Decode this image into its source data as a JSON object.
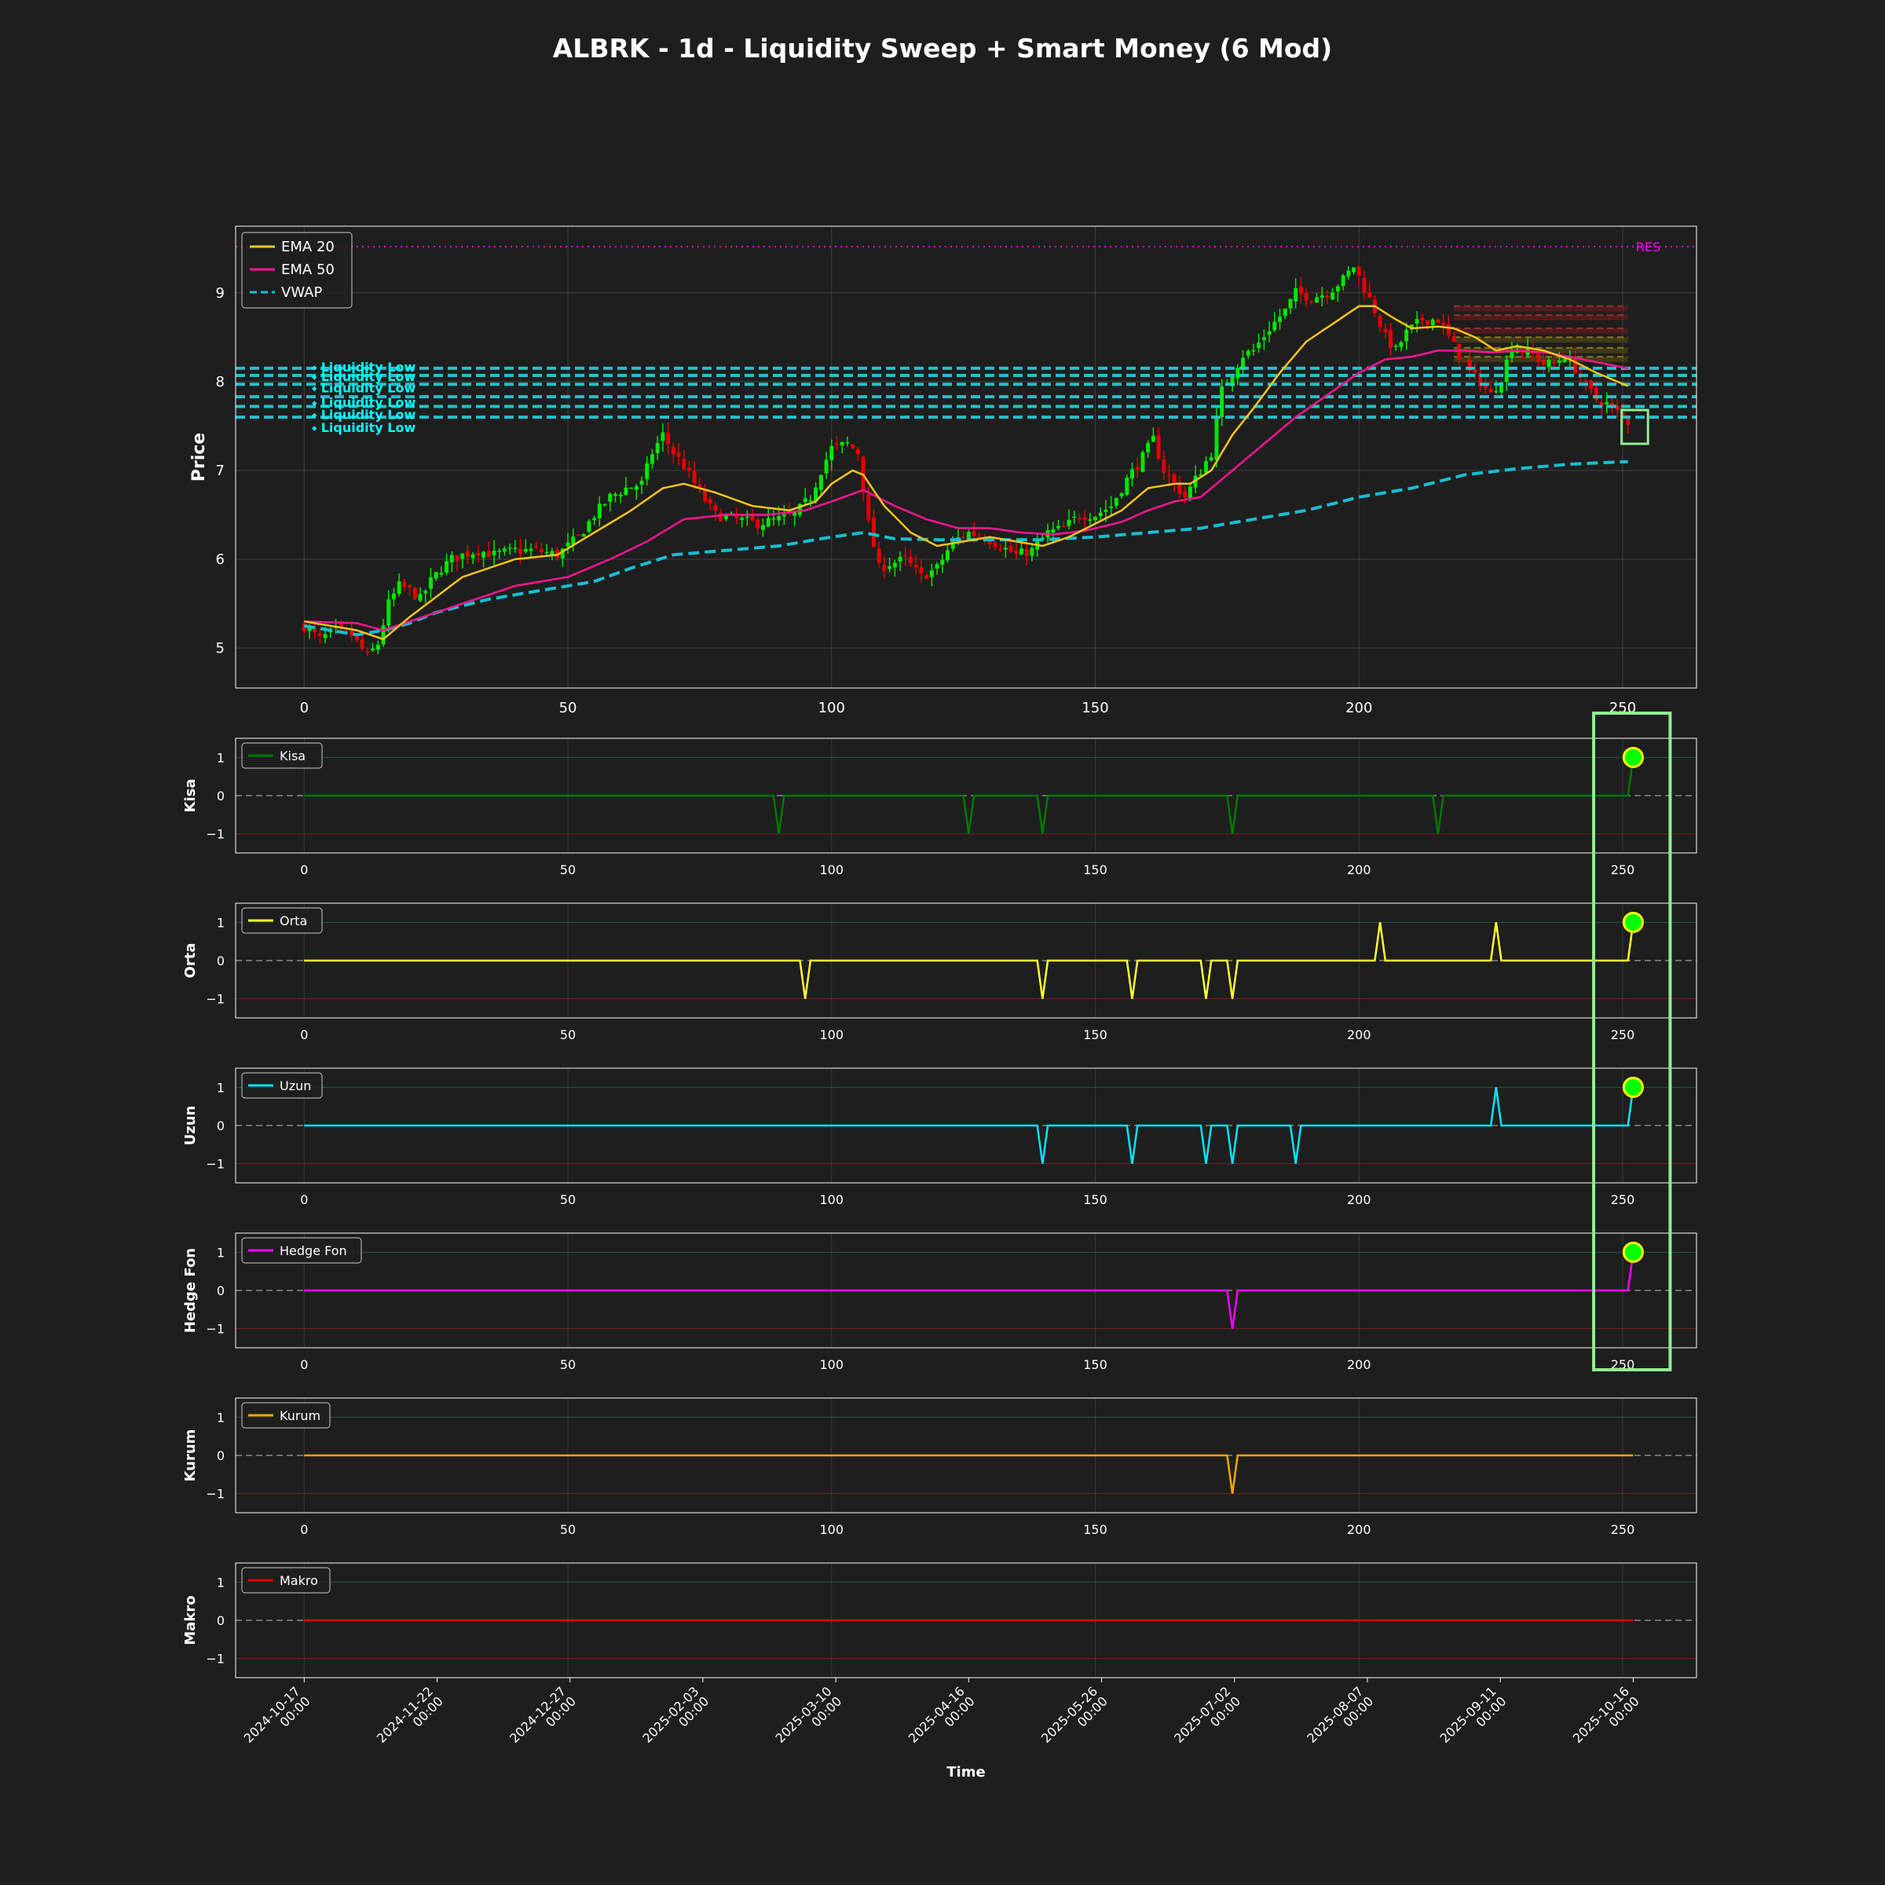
{
  "title": "ALBRK - 1d - Liquidity Sweep + Smart Money (6 Mod)",
  "colors": {
    "background": "#1e1e1e",
    "up_candle": "#00e600",
    "down_candle": "#e60000",
    "ema20": "#f5c518",
    "ema50": "#ff1493",
    "vwap": "#17becf",
    "liquidity": "#22d3dd",
    "resistance": "#ff00ff",
    "highlight": "#90ee90",
    "marker_fill": "#00ff00",
    "marker_edge": "#ffff00"
  },
  "chart_data": [
    {
      "type": "candlestick",
      "id": "price",
      "ylabel": "Price",
      "xlim": [
        -13,
        264
      ],
      "ylim": [
        4.55,
        9.75
      ],
      "xticks": [
        0,
        50,
        100,
        150,
        200,
        250
      ],
      "yticks": [
        5,
        6,
        7,
        8,
        9
      ],
      "grid": true,
      "legend_position": "top-left",
      "legend": [
        "EMA 20",
        "EMA 50",
        "VWAP"
      ],
      "series_names": {
        "ema20": "EMA 20",
        "ema50": "EMA 50",
        "vwap": "VWAP"
      },
      "close_anchors": [
        [
          0,
          5.25
        ],
        [
          3,
          5.1
        ],
        [
          6,
          5.2
        ],
        [
          9,
          5.15
        ],
        [
          12,
          4.9
        ],
        [
          14,
          5.05
        ],
        [
          16,
          5.5
        ],
        [
          18,
          5.7
        ],
        [
          20,
          5.65
        ],
        [
          22,
          5.55
        ],
        [
          24,
          5.75
        ],
        [
          26,
          5.9
        ],
        [
          28,
          6.0
        ],
        [
          30,
          6.05
        ],
        [
          33,
          6.1
        ],
        [
          36,
          6.05
        ],
        [
          40,
          6.1
        ],
        [
          44,
          6.1
        ],
        [
          48,
          6.05
        ],
        [
          52,
          6.25
        ],
        [
          55,
          6.5
        ],
        [
          58,
          6.7
        ],
        [
          61,
          6.8
        ],
        [
          64,
          6.85
        ],
        [
          66,
          7.2
        ],
        [
          68,
          7.4
        ],
        [
          70,
          7.2
        ],
        [
          72,
          7.05
        ],
        [
          75,
          6.75
        ],
        [
          78,
          6.5
        ],
        [
          82,
          6.45
        ],
        [
          86,
          6.4
        ],
        [
          90,
          6.45
        ],
        [
          93,
          6.5
        ],
        [
          96,
          6.7
        ],
        [
          98,
          7.0
        ],
        [
          100,
          7.25
        ],
        [
          103,
          7.3
        ],
        [
          105,
          7.2
        ],
        [
          107,
          6.4
        ],
        [
          109,
          5.9
        ],
        [
          111,
          5.95
        ],
        [
          114,
          6.0
        ],
        [
          117,
          5.8
        ],
        [
          120,
          5.9
        ],
        [
          123,
          6.2
        ],
        [
          126,
          6.3
        ],
        [
          129,
          6.25
        ],
        [
          132,
          6.15
        ],
        [
          135,
          6.05
        ],
        [
          138,
          6.1
        ],
        [
          141,
          6.3
        ],
        [
          144,
          6.35
        ],
        [
          147,
          6.5
        ],
        [
          150,
          6.5
        ],
        [
          153,
          6.6
        ],
        [
          156,
          6.9
        ],
        [
          159,
          7.15
        ],
        [
          161,
          7.35
        ],
        [
          163,
          7.0
        ],
        [
          165,
          6.85
        ],
        [
          167,
          6.7
        ],
        [
          169,
          6.9
        ],
        [
          172,
          7.2
        ],
        [
          174,
          7.9
        ],
        [
          176,
          8.1
        ],
        [
          178,
          8.3
        ],
        [
          180,
          8.35
        ],
        [
          183,
          8.6
        ],
        [
          186,
          8.8
        ],
        [
          188,
          9.0
        ],
        [
          191,
          8.95
        ],
        [
          194,
          9.0
        ],
        [
          197,
          9.15
        ],
        [
          199,
          9.3
        ],
        [
          201,
          9.05
        ],
        [
          203,
          8.8
        ],
        [
          205,
          8.5
        ],
        [
          207,
          8.35
        ],
        [
          209,
          8.55
        ],
        [
          212,
          8.7
        ],
        [
          215,
          8.7
        ],
        [
          217,
          8.5
        ],
        [
          219,
          8.3
        ],
        [
          221,
          8.1
        ],
        [
          223,
          8.0
        ],
        [
          225,
          7.85
        ],
        [
          227,
          8.05
        ],
        [
          229,
          8.4
        ],
        [
          231,
          8.35
        ],
        [
          233,
          8.3
        ],
        [
          235,
          8.2
        ],
        [
          237,
          8.2
        ],
        [
          239,
          8.3
        ],
        [
          241,
          8.15
        ],
        [
          243,
          7.95
        ],
        [
          245,
          7.8
        ],
        [
          247,
          7.75
        ],
        [
          249,
          7.65
        ],
        [
          251,
          7.55
        ]
      ],
      "ema20_anchors": [
        [
          0,
          5.3
        ],
        [
          10,
          5.2
        ],
        [
          15,
          5.1
        ],
        [
          20,
          5.35
        ],
        [
          30,
          5.8
        ],
        [
          40,
          6.0
        ],
        [
          48,
          6.05
        ],
        [
          55,
          6.3
        ],
        [
          62,
          6.55
        ],
        [
          68,
          6.8
        ],
        [
          72,
          6.85
        ],
        [
          78,
          6.75
        ],
        [
          85,
          6.6
        ],
        [
          92,
          6.55
        ],
        [
          97,
          6.65
        ],
        [
          100,
          6.85
        ],
        [
          104,
          7.0
        ],
        [
          106,
          6.95
        ],
        [
          110,
          6.6
        ],
        [
          115,
          6.3
        ],
        [
          120,
          6.15
        ],
        [
          125,
          6.2
        ],
        [
          130,
          6.25
        ],
        [
          135,
          6.2
        ],
        [
          140,
          6.15
        ],
        [
          145,
          6.25
        ],
        [
          150,
          6.4
        ],
        [
          155,
          6.55
        ],
        [
          160,
          6.8
        ],
        [
          165,
          6.85
        ],
        [
          168,
          6.85
        ],
        [
          172,
          7.0
        ],
        [
          176,
          7.4
        ],
        [
          180,
          7.7
        ],
        [
          185,
          8.1
        ],
        [
          190,
          8.45
        ],
        [
          195,
          8.65
        ],
        [
          200,
          8.85
        ],
        [
          203,
          8.85
        ],
        [
          207,
          8.7
        ],
        [
          210,
          8.6
        ],
        [
          215,
          8.62
        ],
        [
          218,
          8.6
        ],
        [
          222,
          8.5
        ],
        [
          226,
          8.35
        ],
        [
          230,
          8.4
        ],
        [
          235,
          8.35
        ],
        [
          240,
          8.25
        ],
        [
          245,
          8.1
        ],
        [
          251,
          7.95
        ]
      ],
      "ema50_anchors": [
        [
          0,
          5.3
        ],
        [
          10,
          5.28
        ],
        [
          15,
          5.2
        ],
        [
          20,
          5.3
        ],
        [
          30,
          5.5
        ],
        [
          40,
          5.7
        ],
        [
          50,
          5.8
        ],
        [
          58,
          6.0
        ],
        [
          65,
          6.2
        ],
        [
          72,
          6.45
        ],
        [
          80,
          6.5
        ],
        [
          88,
          6.5
        ],
        [
          95,
          6.55
        ],
        [
          100,
          6.65
        ],
        [
          106,
          6.78
        ],
        [
          112,
          6.6
        ],
        [
          118,
          6.45
        ],
        [
          124,
          6.35
        ],
        [
          130,
          6.35
        ],
        [
          136,
          6.3
        ],
        [
          142,
          6.28
        ],
        [
          148,
          6.32
        ],
        [
          155,
          6.42
        ],
        [
          160,
          6.55
        ],
        [
          165,
          6.65
        ],
        [
          170,
          6.7
        ],
        [
          176,
          7.0
        ],
        [
          182,
          7.3
        ],
        [
          188,
          7.6
        ],
        [
          194,
          7.85
        ],
        [
          200,
          8.1
        ],
        [
          205,
          8.25
        ],
        [
          210,
          8.28
        ],
        [
          215,
          8.35
        ],
        [
          220,
          8.35
        ],
        [
          225,
          8.33
        ],
        [
          230,
          8.35
        ],
        [
          235,
          8.33
        ],
        [
          240,
          8.28
        ],
        [
          245,
          8.22
        ],
        [
          251,
          8.15
        ]
      ],
      "vwap_anchors": [
        [
          0,
          5.25
        ],
        [
          10,
          5.15
        ],
        [
          15,
          5.2
        ],
        [
          20,
          5.28
        ],
        [
          25,
          5.4
        ],
        [
          35,
          5.55
        ],
        [
          45,
          5.65
        ],
        [
          55,
          5.75
        ],
        [
          62,
          5.9
        ],
        [
          70,
          6.05
        ],
        [
          80,
          6.1
        ],
        [
          90,
          6.15
        ],
        [
          100,
          6.25
        ],
        [
          106,
          6.3
        ],
        [
          112,
          6.23
        ],
        [
          120,
          6.22
        ],
        [
          130,
          6.22
        ],
        [
          140,
          6.22
        ],
        [
          150,
          6.25
        ],
        [
          160,
          6.3
        ],
        [
          170,
          6.35
        ],
        [
          180,
          6.45
        ],
        [
          190,
          6.55
        ],
        [
          200,
          6.7
        ],
        [
          210,
          6.8
        ],
        [
          220,
          6.95
        ],
        [
          230,
          7.02
        ],
        [
          240,
          7.07
        ],
        [
          251,
          7.1
        ]
      ],
      "liquidity_levels": [
        8.15,
        8.07,
        7.97,
        7.83,
        7.72,
        7.6
      ],
      "liquidity_label": "⬩ Liquidity Low",
      "resistance_level": 9.52,
      "resistance_label": "RES",
      "zone_levels": [
        8.85,
        8.75,
        8.6,
        8.5,
        8.38,
        8.28
      ],
      "zone_x": [
        218,
        251
      ]
    },
    {
      "type": "line",
      "id": "kisa",
      "ylabel": "Kisa",
      "series_name": "Kisa",
      "color": "#007a00",
      "ylim": [
        -1.5,
        1.5
      ],
      "yticks": [
        1,
        0,
        -1
      ],
      "spikes": [
        [
          90,
          -1
        ],
        [
          126,
          -1
        ],
        [
          140,
          -1
        ],
        [
          176,
          -1
        ],
        [
          215,
          -1
        ],
        [
          251,
          1
        ]
      ],
      "marker": [
        252,
        1
      ],
      "highlight": true
    },
    {
      "type": "line",
      "id": "orta",
      "ylabel": "Orta",
      "series_name": "Orta",
      "color": "#ffff33",
      "ylim": [
        -1.5,
        1.5
      ],
      "yticks": [
        1,
        0,
        -1
      ],
      "spikes": [
        [
          95,
          -1
        ],
        [
          140,
          -1
        ],
        [
          157,
          -1
        ],
        [
          171,
          -1
        ],
        [
          176,
          -1
        ],
        [
          204,
          1
        ],
        [
          226,
          1
        ],
        [
          251,
          1
        ]
      ],
      "marker": [
        252,
        1
      ],
      "highlight": true
    },
    {
      "type": "line",
      "id": "uzun",
      "ylabel": "Uzun",
      "series_name": "Uzun",
      "color": "#00e5ff",
      "ylim": [
        -1.5,
        1.5
      ],
      "yticks": [
        1,
        0,
        -1
      ],
      "spikes": [
        [
          140,
          -1
        ],
        [
          157,
          -1
        ],
        [
          171,
          -1
        ],
        [
          176,
          -1
        ],
        [
          188,
          -1
        ],
        [
          226,
          1
        ],
        [
          251,
          1
        ]
      ],
      "marker": [
        252,
        1
      ],
      "highlight": true
    },
    {
      "type": "line",
      "id": "hedge",
      "ylabel": "Hedge Fon",
      "series_name": "Hedge Fon",
      "color": "#ff00ff",
      "ylim": [
        -1.5,
        1.5
      ],
      "yticks": [
        1,
        0,
        -1
      ],
      "spikes": [
        [
          176,
          -1
        ],
        [
          251,
          1
        ]
      ],
      "marker": [
        252,
        1
      ],
      "highlight": true
    },
    {
      "type": "line",
      "id": "kurum",
      "ylabel": "Kurum",
      "series_name": "Kurum",
      "color": "#ffa500",
      "ylim": [
        -1.5,
        1.5
      ],
      "yticks": [
        1,
        0,
        -1
      ],
      "spikes": [
        [
          176,
          -1
        ]
      ],
      "marker": null,
      "highlight": false
    },
    {
      "type": "line",
      "id": "makro",
      "ylabel": "Makro",
      "series_name": "Makro",
      "color": "#e60000",
      "ylim": [
        -1.5,
        1.5
      ],
      "yticks": [
        1,
        0,
        -1
      ],
      "spikes": [],
      "marker": null,
      "highlight": false,
      "date_ticks": [
        "2024-10-17\n00:00",
        "2024-11-22\n00:00",
        "2024-12-27\n00:00",
        "2025-02-03\n00:00",
        "2025-03-10\n00:00",
        "2025-04-16\n00:00",
        "2025-05-26\n00:00",
        "2025-07-02\n00:00",
        "2025-08-07\n00:00",
        "2025-09-11\n00:00",
        "2025-10-16\n00:00"
      ],
      "xlabel": "Time"
    }
  ]
}
